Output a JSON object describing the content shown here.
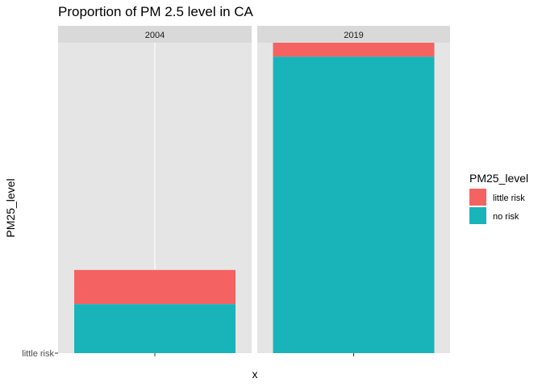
{
  "chart_data": {
    "type": "bar",
    "stacked": true,
    "title": "Proportion of PM 2.5 level in CA",
    "xlabel": "x",
    "ylabel": "PM25_level",
    "y_tick_labels": [
      "little risk"
    ],
    "facets": [
      {
        "label": "2004",
        "no_risk": 0.158,
        "little_risk": 0.11
      },
      {
        "label": "2019",
        "no_risk": 0.955,
        "little_risk": 0.045
      }
    ],
    "series": [
      {
        "name": "no risk",
        "color": "#19B4B9"
      },
      {
        "name": "little risk",
        "color": "#F46361"
      }
    ],
    "ylim": [
      0,
      1
    ],
    "legend": {
      "title": "PM25_level",
      "items": [
        {
          "label": "little risk",
          "color": "#F46361"
        },
        {
          "label": "no risk",
          "color": "#19B4B9"
        }
      ],
      "position": "right"
    },
    "grid": true,
    "panel_background": "#E5E5E5",
    "strip_background": "#D9D9D9"
  }
}
